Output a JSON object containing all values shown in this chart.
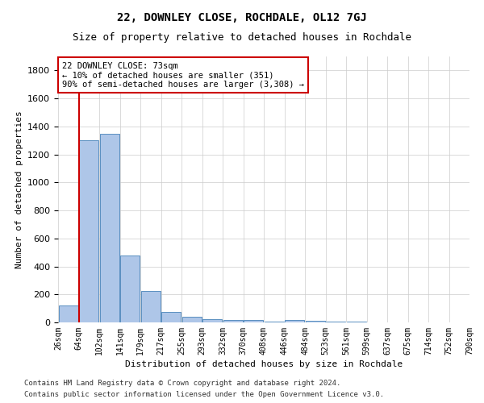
{
  "title1": "22, DOWNLEY CLOSE, ROCHDALE, OL12 7GJ",
  "title2": "Size of property relative to detached houses in Rochdale",
  "xlabel": "Distribution of detached houses by size in Rochdale",
  "ylabel": "Number of detached properties",
  "footnote1": "Contains HM Land Registry data © Crown copyright and database right 2024.",
  "footnote2": "Contains public sector information licensed under the Open Government Licence v3.0.",
  "annotation_lines": [
    "22 DOWNLEY CLOSE: 73sqm",
    "← 10% of detached houses are smaller (351)",
    "90% of semi-detached houses are larger (3,308) →"
  ],
  "bar_values": [
    120,
    1300,
    1350,
    480,
    225,
    75,
    40,
    25,
    15,
    15,
    5,
    20,
    10,
    5,
    3,
    2,
    2,
    1,
    1,
    1
  ],
  "bin_labels": [
    "26sqm",
    "64sqm",
    "102sqm",
    "141sqm",
    "179sqm",
    "217sqm",
    "255sqm",
    "293sqm",
    "332sqm",
    "370sqm",
    "408sqm",
    "446sqm",
    "484sqm",
    "523sqm",
    "561sqm",
    "599sqm",
    "637sqm",
    "675sqm",
    "714sqm",
    "752sqm",
    "790sqm"
  ],
  "bar_color": "#aec6e8",
  "bar_edge_color": "#5a8fc0",
  "property_sqm": 73,
  "ylim": [
    0,
    1900
  ],
  "yticks": [
    0,
    200,
    400,
    600,
    800,
    1000,
    1200,
    1400,
    1600,
    1800
  ],
  "background_color": "#ffffff",
  "grid_color": "#cccccc",
  "annotation_box_color": "#ffffff",
  "annotation_box_edge": "#cc0000",
  "redline_color": "#cc0000"
}
